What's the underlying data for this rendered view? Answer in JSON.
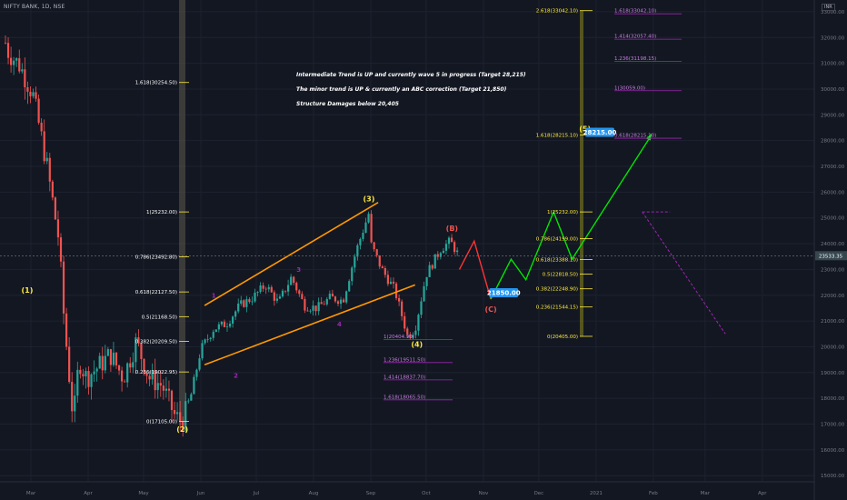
{
  "header": {
    "symbol": "NIFTY BANK, 1D, NSE",
    "currency": "INR"
  },
  "notes": [
    "Intermediate Trend is UP and currently  wave 5 in progress (Target 28,215)",
    "The minor trend is UP & currently an ABC correction (Target 21,850)",
    "Structure Damages below 20,405"
  ],
  "colors": {
    "background": "#131722",
    "up": "#26a69a",
    "down": "#ef5350",
    "channel": "#ff9800",
    "projection_up": "#00e600",
    "projection_down": "#ff3333",
    "fib_left": "#ffeb3b",
    "fib_ext": "#9c27b0",
    "last_price_bg": "#37474f",
    "target_label_bg": "#2196f3"
  },
  "chart_data": {
    "type": "candlestick",
    "title": "NIFTY BANK, 1D, NSE",
    "x_ticks": [
      "Mar",
      "Apr",
      "May",
      "Jun",
      "Jul",
      "Aug",
      "Sep",
      "Oct",
      "Nov",
      "Dec",
      "2021",
      "Feb",
      "Mar",
      "Apr"
    ],
    "y_ticks": [
      15000,
      16000,
      17000,
      18000,
      19000,
      20000,
      21000,
      22000,
      23000,
      24000,
      25000,
      26000,
      27000,
      28000,
      29000,
      30000,
      31000,
      32000,
      33000
    ],
    "ylim": [
      14700,
      33500
    ],
    "last_price": "23533.35",
    "candles_approx": [
      [
        "2020-02-17",
        31500
      ],
      [
        "2020-02-24",
        30900
      ],
      [
        "2020-03-02",
        29800
      ],
      [
        "2020-03-09",
        27300
      ],
      [
        "2020-03-16",
        24200
      ],
      [
        "2020-03-19",
        21000
      ],
      [
        "2020-03-24",
        17100
      ],
      [
        "2020-03-27",
        19500
      ],
      [
        "2020-03-31",
        18800
      ],
      [
        "2020-04-06",
        19200
      ],
      [
        "2020-04-13",
        19700
      ],
      [
        "2020-04-20",
        18800
      ],
      [
        "2020-04-27",
        20200
      ],
      [
        "2020-05-04",
        18800
      ],
      [
        "2020-05-11",
        18500
      ],
      [
        "2020-05-18",
        17300
      ],
      [
        "2020-05-22",
        17100
      ],
      [
        "2020-05-26",
        17900
      ],
      [
        "2020-06-01",
        19900
      ],
      [
        "2020-06-08",
        20700
      ],
      [
        "2020-06-15",
        20900
      ],
      [
        "2020-06-22",
        21600
      ],
      [
        "2020-06-29",
        21900
      ],
      [
        "2020-07-06",
        22400
      ],
      [
        "2020-07-13",
        21700
      ],
      [
        "2020-07-20",
        22700
      ],
      [
        "2020-07-27",
        21600
      ],
      [
        "2020-08-03",
        21500
      ],
      [
        "2020-08-10",
        21900
      ],
      [
        "2020-08-17",
        21800
      ],
      [
        "2020-08-24",
        23700
      ],
      [
        "2020-08-31",
        25200
      ],
      [
        "2020-09-01",
        24000
      ],
      [
        "2020-09-07",
        23000
      ],
      [
        "2020-09-14",
        22200
      ],
      [
        "2020-09-21",
        20400
      ],
      [
        "2020-09-25",
        20700
      ],
      [
        "2020-10-01",
        22800
      ],
      [
        "2020-10-09",
        23800
      ],
      [
        "2020-10-14",
        24100
      ],
      [
        "2020-10-19",
        23500
      ]
    ],
    "channel": {
      "upper": [
        [
          "2020-06-03",
          21600
        ],
        [
          "2020-09-05",
          25600
        ]
      ],
      "lower": [
        [
          "2020-06-03",
          19300
        ],
        [
          "2020-09-25",
          22400
        ]
      ]
    },
    "wave_labels": [
      {
        "text": "(1)",
        "date": "2020-02-28",
        "price": 22100,
        "color": "#ffeb3b"
      },
      {
        "text": "(2)",
        "date": "2020-05-22",
        "price": 16700,
        "color": "#ffeb3b"
      },
      {
        "text": "(3)",
        "date": "2020-08-31",
        "price": 25650,
        "color": "#ffeb3b"
      },
      {
        "text": "(4)",
        "date": "2020-09-26",
        "price": 20000,
        "color": "#ffeb3b"
      },
      {
        "text": "(5)",
        "date": "2020-12-26",
        "price": 28350,
        "color": "#ffeb3b"
      },
      {
        "text": "1",
        "date": "2020-06-08",
        "price": 21900,
        "color": "#9c27b0"
      },
      {
        "text": "2",
        "date": "2020-06-20",
        "price": 18800,
        "color": "#9c27b0"
      },
      {
        "text": "3",
        "date": "2020-07-24",
        "price": 22900,
        "color": "#9c27b0"
      },
      {
        "text": "4",
        "date": "2020-08-15",
        "price": 20800,
        "color": "#9c27b0"
      },
      {
        "text": "(B)",
        "date": "2020-10-15",
        "price": 24500,
        "color": "#ef5350"
      },
      {
        "text": "(C)",
        "date": "2020-11-05",
        "price": 21350,
        "color": "#ef5350"
      }
    ],
    "fib_left": [
      {
        "label": "1.618(30254.50)",
        "price": 30254.5
      },
      {
        "label": "1(25232.00)",
        "price": 25232
      },
      {
        "label": "0.786(23492.80)",
        "price": 23492.8
      },
      {
        "label": "0.618(22127.50)",
        "price": 22127.5
      },
      {
        "label": "0.5(21168.50)",
        "price": 21168.5
      },
      {
        "label": "0.382(20209.50)",
        "price": 20209.5
      },
      {
        "label": "0.236(19022.95)",
        "price": 19022.95
      },
      {
        "label": "0(17105.00)",
        "price": 17105
      }
    ],
    "fib_right": [
      {
        "label": "2.618(33042.10)",
        "price": 33042.1
      },
      {
        "label": "1.618(28215.10)",
        "price": 28215.1
      },
      {
        "label": "1(25232.00)",
        "price": 25232
      },
      {
        "label": "0.786(24199.00)",
        "price": 24199
      },
      {
        "label": "0.618(23388.10)",
        "price": 23388.1
      },
      {
        "label": "0.5(22818.50)",
        "price": 22818.5
      },
      {
        "label": "0.382(22248.90)",
        "price": 22248.9
      },
      {
        "label": "0.236(21544.15)",
        "price": 21544.15
      },
      {
        "label": "0(20405.00)",
        "price": 20405
      }
    ],
    "fib_ext_top": [
      {
        "label": "1.618(33042.10)",
        "price": 33042.1
      },
      {
        "label": "1.414(32057.40)",
        "price": 32057.4
      },
      {
        "label": "1.236(31198.15)",
        "price": 31198.15
      },
      {
        "label": "1(30059.00)",
        "price": 30059
      },
      {
        "label": "0.618(28215.10)",
        "price": 28215.1
      }
    ],
    "fib_ext_bottom": [
      {
        "label": "1(20404.90)",
        "price": 20404.9
      },
      {
        "label": "1.236(19511.50)",
        "price": 19511.5
      },
      {
        "label": "1.414(18837.70)",
        "price": 18837.7
      },
      {
        "label": "1.618(18065.50)",
        "price": 18065.5
      }
    ],
    "targets": [
      {
        "label": "21850.00",
        "price": 21850
      },
      {
        "label": "28215.00",
        "price": 28215
      }
    ],
    "projection_abc": [
      [
        "2020-10-19",
        23000
      ],
      [
        "2020-10-27",
        24100
      ],
      [
        "2020-11-05",
        21850
      ]
    ],
    "projection_wave5": [
      [
        "2020-11-05",
        21850
      ],
      [
        "2020-11-16",
        23400
      ],
      [
        "2020-11-24",
        22600
      ],
      [
        "2020-12-09",
        25232
      ],
      [
        "2020-12-19",
        23400
      ],
      [
        "2021-01-31",
        28215
      ]
    ]
  }
}
